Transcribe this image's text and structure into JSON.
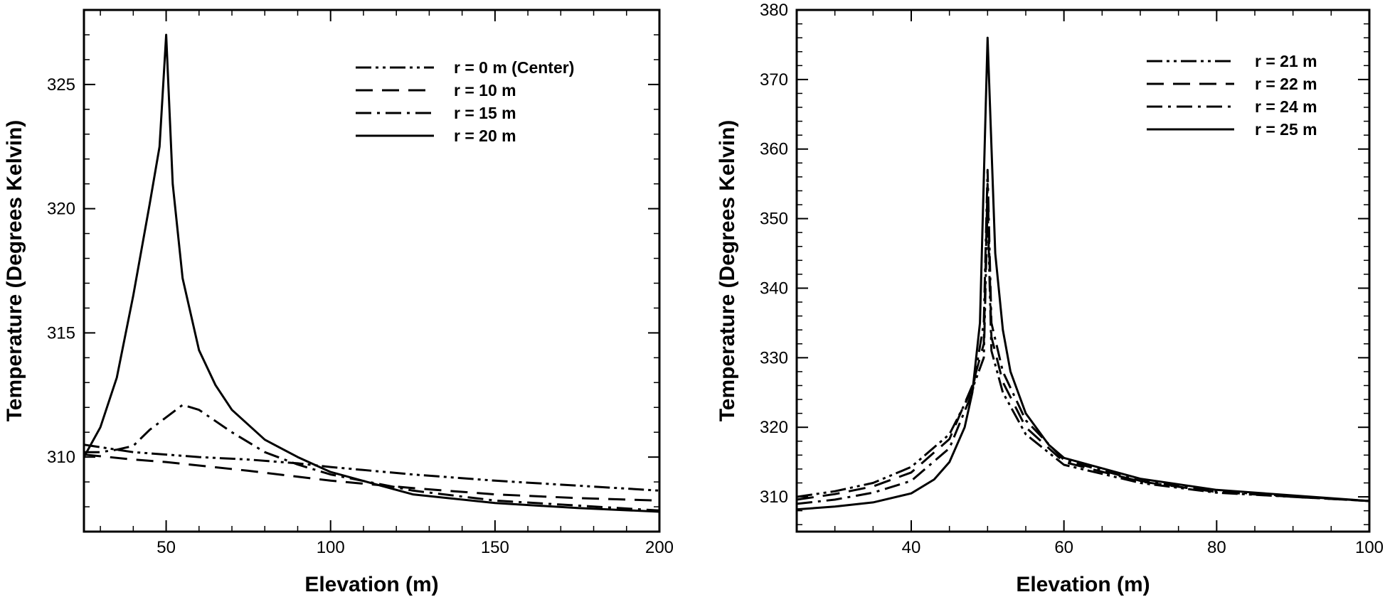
{
  "chart_data": [
    {
      "type": "line",
      "xlabel": "Elevation (m)",
      "ylabel": "Temperature (Degrees Kelvin)",
      "xlim": [
        25,
        200
      ],
      "ylim": [
        307,
        328
      ],
      "xticks": [
        50,
        100,
        150,
        200
      ],
      "yticks": [
        310,
        315,
        320,
        325
      ],
      "xtick_labels": [
        "50",
        "100",
        "150",
        "200"
      ],
      "ytick_labels": [
        "310",
        "315",
        "320",
        "325"
      ],
      "legend_position": "top-right",
      "series": [
        {
          "name": "r = 0 m (Center)",
          "dash": "dash-dot-dot",
          "x": [
            25,
            30,
            40,
            50,
            60,
            75,
            90,
            100,
            125,
            150,
            175,
            200
          ],
          "y": [
            310.5,
            310.4,
            310.2,
            310.1,
            310.0,
            309.9,
            309.75,
            309.6,
            309.3,
            309.05,
            308.85,
            308.65
          ]
        },
        {
          "name": "r = 10 m",
          "dash": "dash",
          "x": [
            25,
            40,
            50,
            75,
            100,
            125,
            150,
            175,
            200
          ],
          "y": [
            310.1,
            309.9,
            309.8,
            309.45,
            309.05,
            308.75,
            308.5,
            308.35,
            308.25
          ]
        },
        {
          "name": "r = 15 m",
          "dash": "dash-dot",
          "x": [
            25,
            30,
            35,
            40,
            45,
            50,
            55,
            60,
            70,
            80,
            90,
            100,
            125,
            150,
            175,
            200
          ],
          "y": [
            310.2,
            310.2,
            310.3,
            310.45,
            311.1,
            311.6,
            312.1,
            311.9,
            311.0,
            310.2,
            309.7,
            309.3,
            308.65,
            308.25,
            308.05,
            307.85
          ]
        },
        {
          "name": "r = 20 m",
          "dash": "solid",
          "x": [
            25,
            30,
            35,
            40,
            45,
            48,
            50,
            52,
            55,
            60,
            65,
            70,
            80,
            90,
            100,
            125,
            150,
            175,
            200
          ],
          "y": [
            310.0,
            311.2,
            313.2,
            316.5,
            320.2,
            322.5,
            327.0,
            321.0,
            317.2,
            314.3,
            312.9,
            311.9,
            310.7,
            310.0,
            309.4,
            308.5,
            308.15,
            307.95,
            307.8
          ]
        }
      ]
    },
    {
      "type": "line",
      "xlabel": "Elevation (m)",
      "ylabel": "Temperature (Degrees Kelvin)",
      "xlim": [
        25,
        100
      ],
      "ylim": [
        305,
        380
      ],
      "xticks": [
        40,
        60,
        80,
        100
      ],
      "yticks": [
        310,
        320,
        330,
        340,
        350,
        360,
        370,
        380
      ],
      "xtick_labels": [
        "40",
        "60",
        "80",
        "100"
      ],
      "ytick_labels": [
        "310",
        "320",
        "330",
        "340",
        "350",
        "360",
        "370",
        "380"
      ],
      "legend_position": "top-right",
      "series": [
        {
          "name": "r = 21 m",
          "dash": "dash-dot-dot",
          "x": [
            25,
            30,
            35,
            40,
            45,
            48,
            49.5,
            50,
            50.5,
            52,
            55,
            60,
            70,
            80,
            90,
            100
          ],
          "y": [
            310.0,
            310.8,
            312.0,
            314.3,
            319.0,
            325.5,
            330.0,
            352.0,
            331.0,
            325.0,
            319.0,
            314.6,
            312.0,
            310.6,
            310.0,
            309.4
          ]
        },
        {
          "name": "r = 22 m",
          "dash": "dash",
          "x": [
            25,
            30,
            35,
            40,
            45,
            48,
            49.5,
            50,
            50.5,
            52,
            55,
            60,
            70,
            80,
            90,
            100
          ],
          "y": [
            309.6,
            310.4,
            311.5,
            313.5,
            318.3,
            326.0,
            332.0,
            355.0,
            333.0,
            326.5,
            320.0,
            315.0,
            312.2,
            310.7,
            310.0,
            309.4
          ]
        },
        {
          "name": "r = 24 m",
          "dash": "dash-dot",
          "x": [
            25,
            30,
            35,
            40,
            45,
            48,
            49.5,
            50,
            50.5,
            52,
            55,
            60,
            70,
            80,
            90,
            100
          ],
          "y": [
            309.0,
            309.6,
            310.6,
            312.3,
            317.0,
            325.0,
            335.0,
            357.0,
            335.0,
            328.0,
            321.0,
            315.3,
            312.3,
            310.8,
            310.1,
            309.4
          ]
        },
        {
          "name": "r = 25 m",
          "dash": "solid",
          "x": [
            25,
            30,
            35,
            40,
            43,
            45,
            47,
            48,
            49,
            50,
            51,
            52,
            53,
            55,
            58,
            60,
            70,
            80,
            90,
            100
          ],
          "y": [
            308.2,
            308.6,
            309.2,
            310.5,
            312.5,
            315.0,
            320.0,
            325.0,
            335.0,
            376.0,
            345.0,
            334.0,
            328.0,
            322.0,
            317.5,
            315.6,
            312.6,
            311.0,
            310.2,
            309.4
          ]
        }
      ]
    }
  ]
}
